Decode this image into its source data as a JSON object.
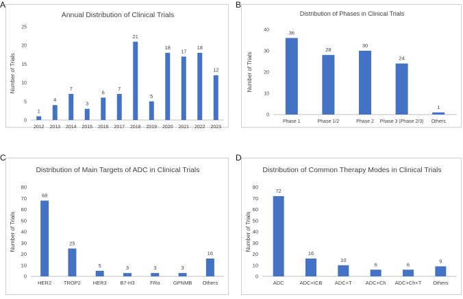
{
  "colors": {
    "bar": "#4472C4",
    "axis": "#bfbfbf",
    "text": "#404040"
  },
  "chart_data": [
    {
      "panel": "A",
      "type": "bar",
      "title": "Annual Distribution of Clinical Trials",
      "xlabel": "",
      "ylabel": "Number of Trials",
      "categories": [
        "2012",
        "2013",
        "2014",
        "2015",
        "2016",
        "2017",
        "2018",
        "2019",
        "2020",
        "2021",
        "2022",
        "2023"
      ],
      "values": [
        1,
        4,
        7,
        3,
        6,
        7,
        21,
        5,
        18,
        17,
        18,
        12
      ],
      "data_labels": [
        "1",
        "4",
        "7",
        "3",
        "6",
        "7",
        "21",
        "5",
        "18",
        "17",
        "18",
        "12"
      ],
      "ylim": [
        0,
        25
      ],
      "yticks": [
        0,
        5,
        10,
        15,
        20,
        25
      ],
      "ytick_labels": [
        "0",
        "5",
        "10",
        "15",
        "20",
        "25"
      ],
      "grid": false
    },
    {
      "panel": "B",
      "type": "bar",
      "title": "Distribution of Phases in Clinical Trials",
      "xlabel": "",
      "ylabel": "Number of Trials",
      "categories": [
        "Phase 1",
        "Phase 1/2",
        "Phase 2",
        "Phase 3 (Phase 2/3)",
        "Others"
      ],
      "values": [
        36,
        28,
        30,
        24,
        1
      ],
      "data_labels": [
        "36",
        "28",
        "30",
        "24",
        "1"
      ],
      "ylim": [
        0,
        40
      ],
      "yticks": [
        0,
        10,
        20,
        30,
        40
      ],
      "ytick_labels": [
        "0",
        "10",
        "20",
        "30",
        "40"
      ],
      "grid": false
    },
    {
      "panel": "C",
      "type": "bar",
      "title": "Distribution of Main Targets of ADC in Clinical Trials",
      "xlabel": "",
      "ylabel": "Number of Trials",
      "categories": [
        "HER2",
        "TROP2",
        "HER3",
        "B7-H3",
        "FRα",
        "GPNMB",
        "Others"
      ],
      "values": [
        68,
        25,
        5,
        3,
        3,
        3,
        16
      ],
      "data_labels": [
        "68",
        "25",
        "5",
        "3",
        "3",
        "3",
        "16"
      ],
      "ylim": [
        0,
        80
      ],
      "yticks": [
        0,
        10,
        20,
        30,
        40,
        50,
        60,
        70,
        80
      ],
      "ytick_labels": [
        "0",
        "10",
        "20",
        "30",
        "40",
        "50",
        "60",
        "70",
        "80"
      ],
      "grid": false
    },
    {
      "panel": "D",
      "type": "bar",
      "title": "Distribution of Common Therapy Modes in Clinical Trials",
      "xlabel": "",
      "ylabel": "Number of Trials",
      "categories": [
        "ADC",
        "ADC+ICB",
        "ADC+T",
        "ADC+Ch",
        "ADC+Ch+T",
        "Others"
      ],
      "values": [
        72,
        16,
        10,
        6,
        6,
        9
      ],
      "data_labels": [
        "72",
        "16",
        "10",
        "6",
        "6",
        "9"
      ],
      "ylim": [
        0,
        80
      ],
      "yticks": [
        0,
        10,
        20,
        30,
        40,
        50,
        60,
        70,
        80
      ],
      "ytick_labels": [
        "0",
        "10",
        "20",
        "30",
        "40",
        "50",
        "60",
        "70",
        "80"
      ],
      "grid": false
    }
  ]
}
